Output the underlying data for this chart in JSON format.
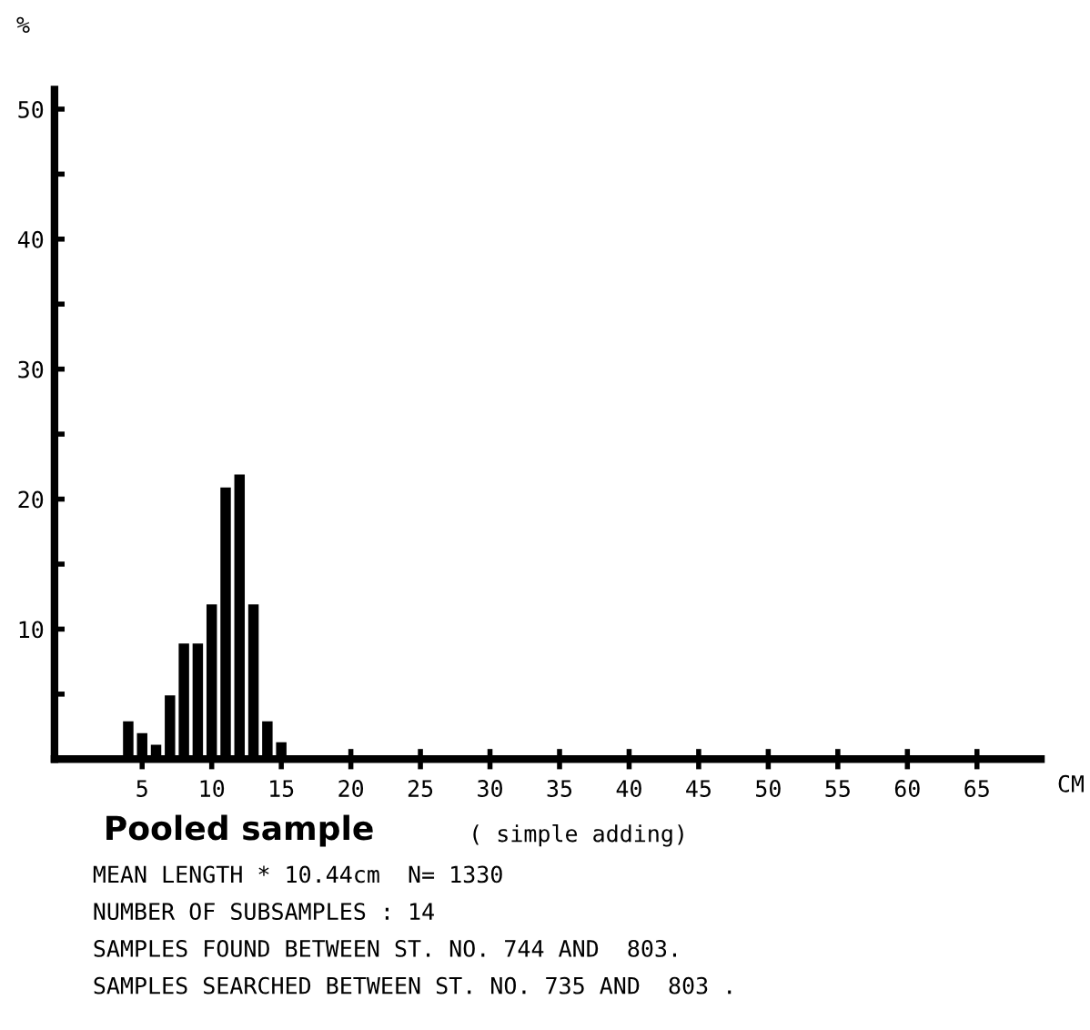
{
  "chart_data": {
    "type": "histogram",
    "title": "Pooled sample",
    "subtitle": "( simple adding)",
    "xlabel": "CM",
    "ylabel": "%",
    "bins": [
      -0.5,
      0.5,
      1.5,
      2.5,
      3.5,
      4.5,
      5.5,
      6.5,
      7.5,
      8.5,
      9.5,
      10.5,
      11.5,
      12.5,
      13.5,
      14.5,
      15.5,
      16.5,
      17.5,
      18.5,
      19.5,
      20.5,
      21.5,
      22.5,
      23.5,
      24.5,
      25.5,
      26.5,
      27.5,
      28.5,
      29.5,
      30.5,
      31.5,
      32.5,
      33.5,
      34.5,
      35.5,
      36.5,
      37.5,
      38.5,
      39.5,
      40.5,
      41.5,
      42.5,
      43.5,
      44.5,
      45.5,
      46.5,
      47.5,
      48.5,
      49.5,
      50.5,
      51.5,
      52.5,
      53.5,
      54.5,
      55.5,
      56.5,
      57.5,
      58.5,
      59.5,
      60.5,
      61.5,
      62.5,
      63.5,
      64.5,
      65.5,
      66.5,
      67.5,
      68.5,
      69.5
    ],
    "values": [
      0,
      0,
      0,
      0,
      2.9,
      2.0,
      1.1,
      4.9,
      8.9,
      8.9,
      11.9,
      20.9,
      21.9,
      11.9,
      2.9,
      1.3,
      0,
      0,
      0,
      0,
      0,
      0,
      0,
      0,
      0,
      0,
      0,
      0,
      0,
      0,
      0,
      0,
      0,
      0,
      0,
      0,
      0,
      0,
      0,
      0,
      0,
      0,
      0,
      0,
      0,
      0,
      0,
      0,
      0,
      0,
      0,
      0,
      0,
      0,
      0,
      0,
      0,
      0,
      0,
      0,
      0,
      0,
      0,
      0,
      0,
      0,
      0,
      0,
      0,
      0
    ],
    "color": "#000000",
    "xlim": [
      -1.3,
      69.6
    ],
    "ylim": [
      0,
      51.5
    ],
    "xticks": [
      5,
      10,
      15,
      20,
      25,
      30,
      35,
      40,
      45,
      50,
      55,
      60,
      65
    ],
    "yticks": [
      {
        "value": 5,
        "label": null
      },
      10,
      {
        "value": 15,
        "label": null
      },
      20,
      {
        "value": 25,
        "label": null
      },
      30,
      {
        "value": 35,
        "label": null
      },
      40,
      {
        "value": 45,
        "label": null
      },
      50
    ],
    "grid": false,
    "annotations": [
      "MEAN LENGTH * 10.44cm  N= 1330",
      "NUMBER OF SUBSAMPLES : 14",
      "SAMPLES FOUND BETWEEN ST. NO. 744 AND  803.",
      "SAMPLES SEARCHED BETWEEN ST. NO. 735 AND  803 ."
    ]
  }
}
